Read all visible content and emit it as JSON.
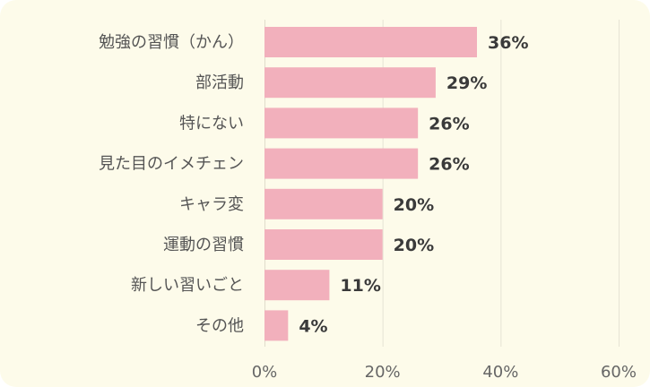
{
  "chart_data": {
    "type": "bar",
    "orientation": "horizontal",
    "categories": [
      "勉強の習慣（かん）",
      "部活動",
      "特にない",
      "見た目のイメチェン",
      "キャラ変",
      "運動の習慣",
      "新しい習いごと",
      "その他"
    ],
    "values": [
      36,
      29,
      26,
      26,
      20,
      20,
      11,
      4
    ],
    "value_labels": [
      "36%",
      "29%",
      "26%",
      "26%",
      "20%",
      "20%",
      "11%",
      "4%"
    ],
    "xticks": [
      0,
      20,
      40,
      60
    ],
    "xtick_labels": [
      "0%",
      "20%",
      "40%",
      "60%"
    ],
    "xlim": [
      0,
      60
    ],
    "grid": true,
    "legend": "none",
    "bar_color": "#f2b0bc",
    "background_color": "#fdfbea"
  }
}
